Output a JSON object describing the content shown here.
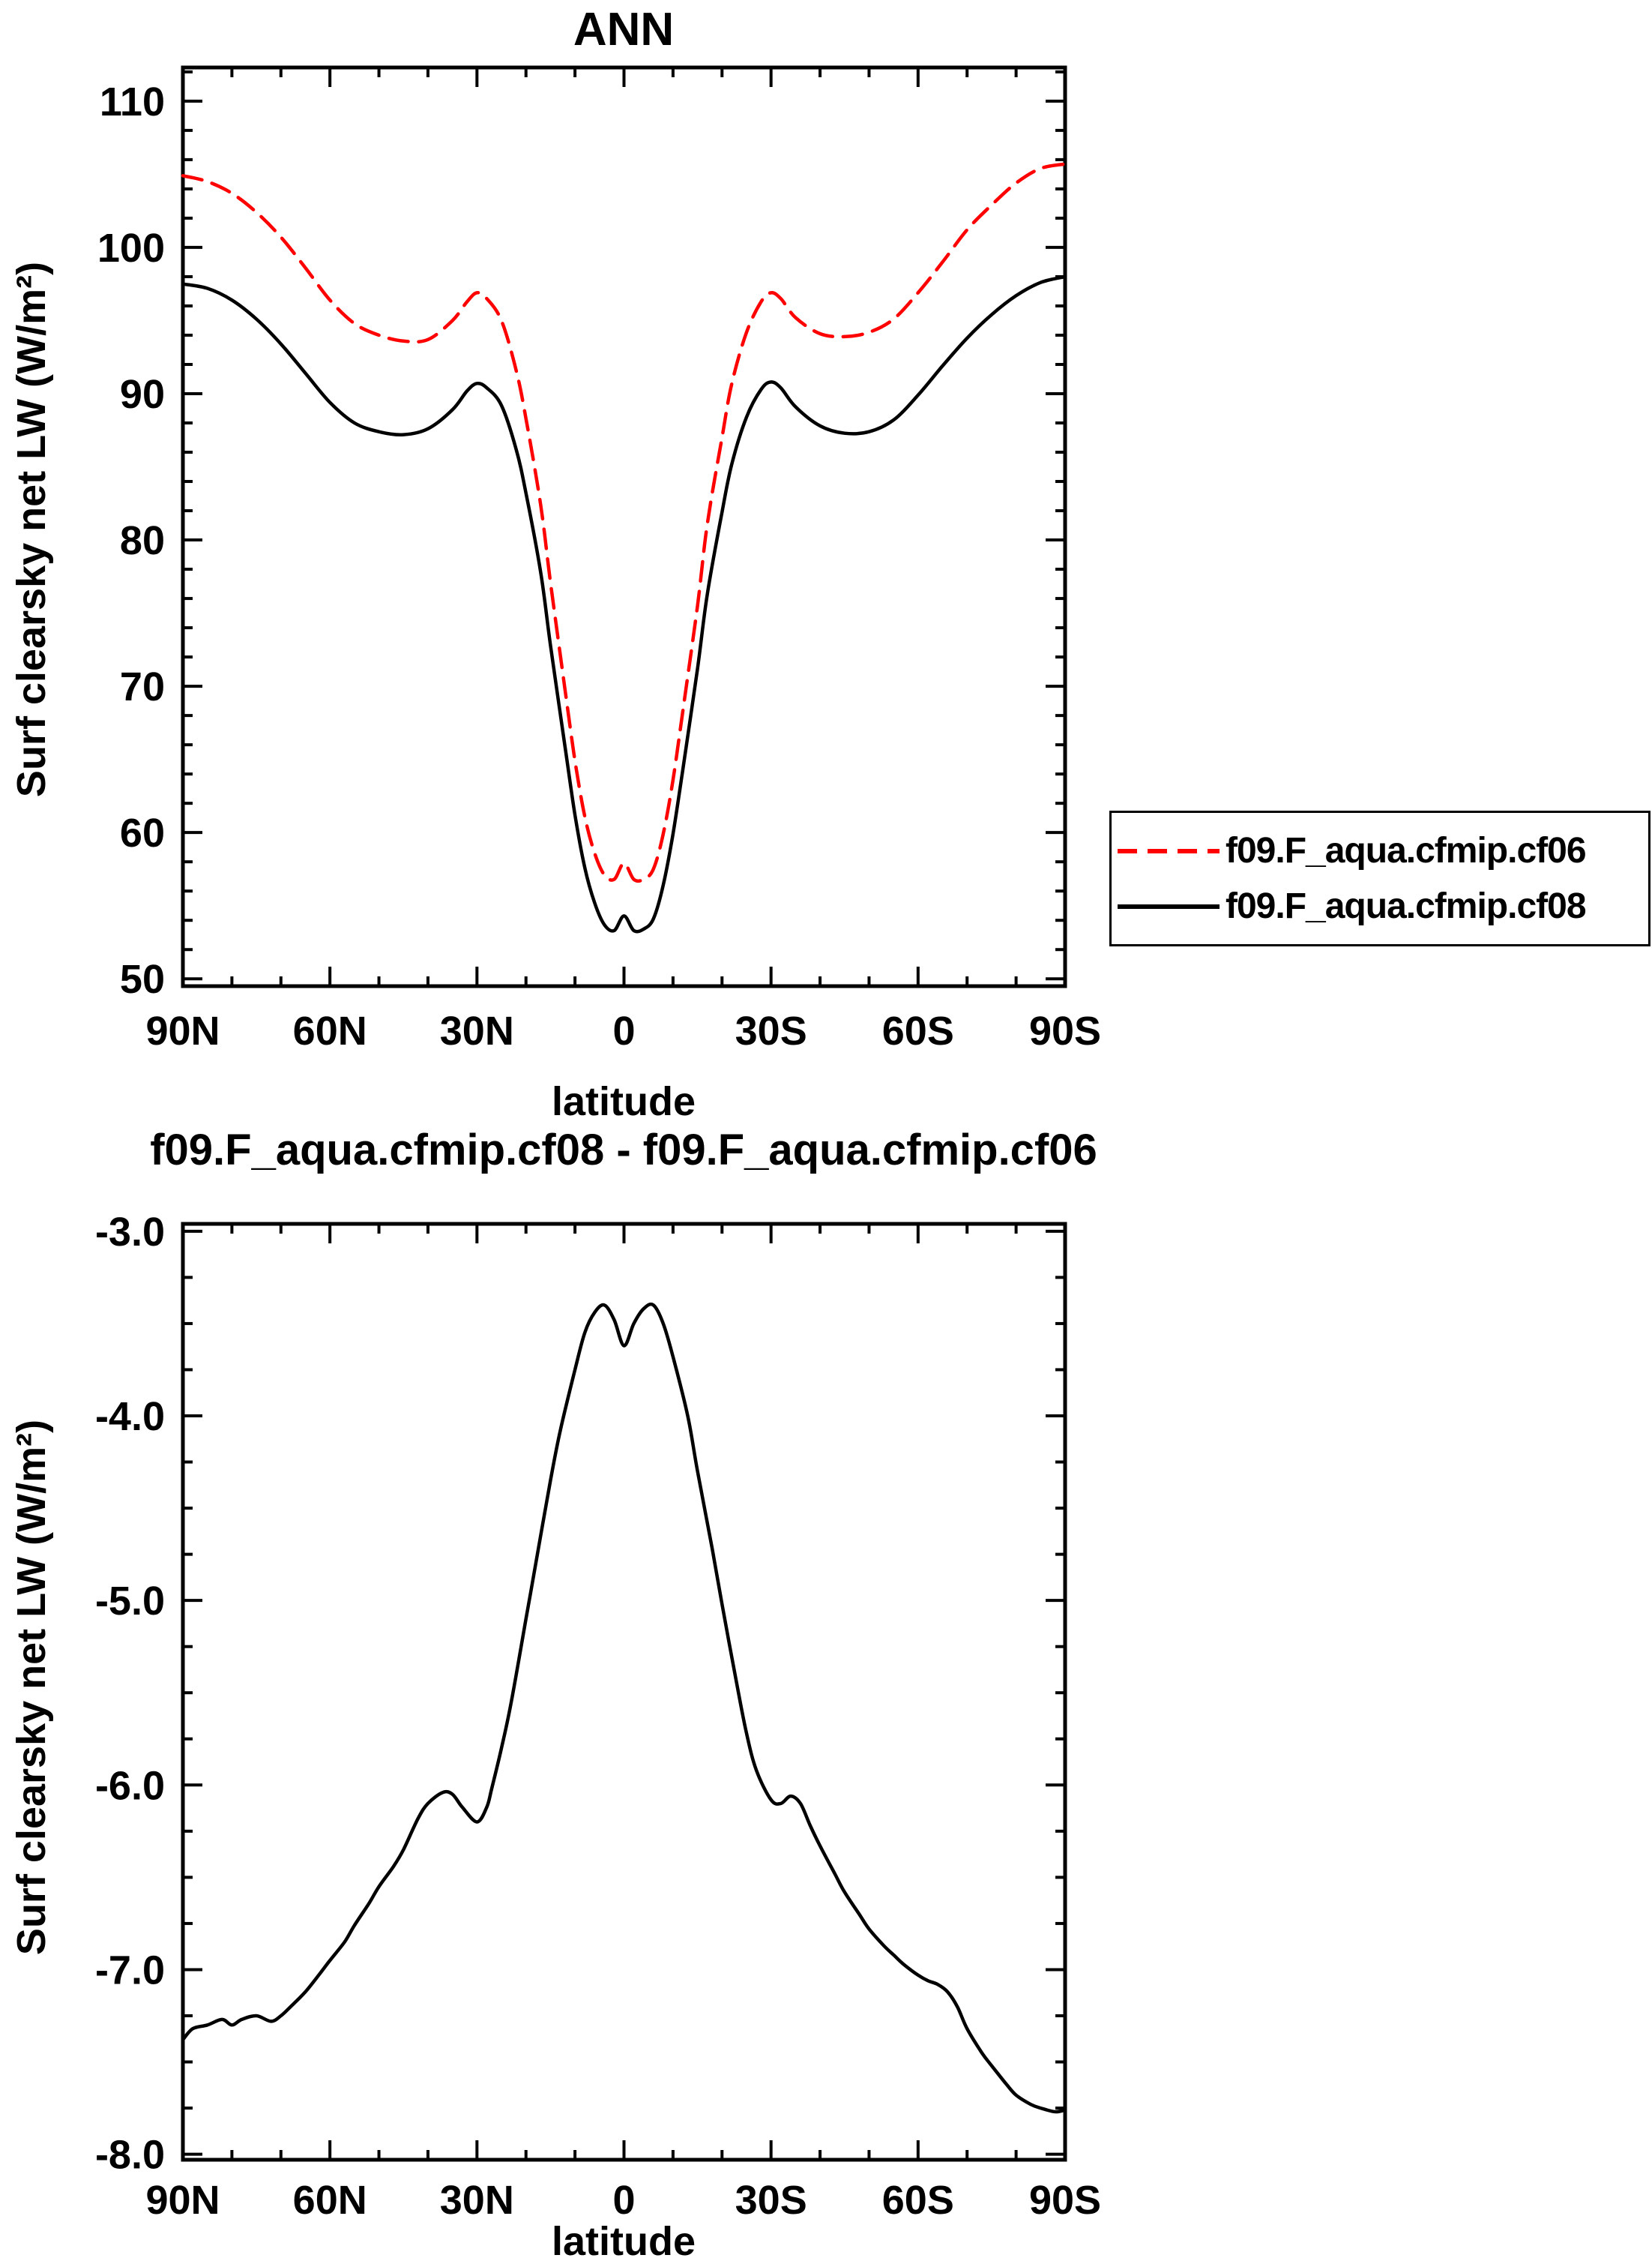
{
  "page": {
    "background": "#ffffff",
    "accent_red": "#ff0000",
    "line_black": "#000000"
  },
  "legend": {
    "position": "outside-right-middle",
    "entries": [
      {
        "label": "f09.F_aqua.cfmip.cf06",
        "color": "#ff0000",
        "style": "dashed"
      },
      {
        "label": "f09.F_aqua.cfmip.cf08",
        "color": "#000000",
        "style": "solid"
      }
    ]
  },
  "chart_data": [
    {
      "type": "line",
      "title": "ANN",
      "x_axis": {
        "label": "latitude",
        "range": [
          90,
          -90
        ],
        "major_ticks": [
          90,
          60,
          30,
          0,
          -30,
          -60,
          -90
        ],
        "major_labels": [
          "90N",
          "60N",
          "30N",
          "0",
          "30S",
          "60S",
          "90S"
        ],
        "minor_step": 10
      },
      "y_axis": {
        "label": "Surf clearsky net LW (W/m²)",
        "range": [
          49.5,
          112.3
        ],
        "major_ticks": [
          50,
          60,
          70,
          80,
          90,
          100,
          110
        ],
        "major_labels": [
          "50",
          "60",
          "70",
          "80",
          "90",
          "100",
          "110"
        ],
        "minor_step": 2
      },
      "grid": false,
      "series": [
        {
          "name": "f09.F_aqua.cfmip.cf06",
          "color": "#ff0000",
          "dash": "dashed",
          "x": [
            90,
            85,
            80,
            75,
            70,
            65,
            60,
            55,
            50,
            45,
            40,
            35,
            32,
            30,
            28,
            25,
            22,
            20,
            17,
            15,
            12,
            10,
            8,
            6,
            4,
            2,
            0,
            -2,
            -4,
            -6,
            -8,
            -10,
            -12,
            -15,
            -17,
            -20,
            -22,
            -25,
            -28,
            -30,
            -32,
            -35,
            -40,
            -45,
            -50,
            -55,
            -60,
            -65,
            -70,
            -75,
            -80,
            -85,
            -90
          ],
          "y": [
            104.9,
            104.5,
            103.7,
            102.4,
            100.7,
            98.6,
            96.4,
            94.8,
            94.0,
            93.6,
            93.7,
            95.0,
            96.3,
            96.9,
            96.5,
            95.0,
            91.6,
            88.3,
            82.4,
            77.1,
            69.7,
            64.9,
            61.1,
            58.6,
            57.1,
            56.8,
            57.9,
            56.8,
            56.8,
            57.5,
            59.9,
            63.6,
            68.3,
            75.5,
            81.1,
            87.0,
            90.7,
            94.2,
            96.3,
            96.9,
            96.5,
            95.2,
            94.1,
            93.9,
            94.2,
            95.1,
            96.9,
            99.0,
            101.2,
            102.9,
            104.4,
            105.4,
            105.7
          ]
        },
        {
          "name": "f09.F_aqua.cfmip.cf08",
          "color": "#000000",
          "dash": "solid",
          "x": [
            90,
            85,
            80,
            75,
            70,
            65,
            60,
            55,
            50,
            45,
            40,
            35,
            32,
            30,
            28,
            25,
            22,
            20,
            17,
            15,
            12,
            10,
            8,
            6,
            4,
            2,
            0,
            -2,
            -4,
            -6,
            -8,
            -10,
            -12,
            -15,
            -17,
            -20,
            -22,
            -25,
            -28,
            -30,
            -32,
            -35,
            -40,
            -45,
            -50,
            -55,
            -60,
            -65,
            -70,
            -75,
            -80,
            -85,
            -90
          ],
          "y": [
            97.5,
            97.2,
            96.4,
            95.1,
            93.4,
            91.4,
            89.4,
            88.0,
            87.4,
            87.2,
            87.6,
            88.9,
            90.2,
            90.7,
            90.4,
            89.2,
            86.2,
            83.2,
            77.8,
            72.8,
            65.8,
            61.2,
            57.6,
            55.2,
            53.7,
            53.3,
            54.3,
            53.3,
            53.4,
            54.1,
            56.4,
            59.9,
            64.3,
            71.2,
            76.3,
            81.9,
            85.2,
            88.4,
            90.3,
            90.8,
            90.4,
            89.1,
            87.8,
            87.3,
            87.4,
            88.2,
            89.9,
            91.9,
            93.8,
            95.4,
            96.7,
            97.6,
            98.0
          ]
        }
      ]
    },
    {
      "type": "line",
      "title": "f09.F_aqua.cfmip.cf08 - f09.F_aqua.cfmip.cf06",
      "x_axis": {
        "label": "latitude",
        "range": [
          90,
          -90
        ],
        "major_ticks": [
          90,
          60,
          30,
          0,
          -30,
          -60,
          -90
        ],
        "major_labels": [
          "90N",
          "60N",
          "30N",
          "0",
          "30S",
          "60S",
          "90S"
        ],
        "minor_step": 10
      },
      "y_axis": {
        "label": "Surf clearsky net LW (W/m²)",
        "range": [
          -8.03,
          -2.96
        ],
        "major_ticks": [
          -8,
          -7,
          -6,
          -5,
          -4,
          -3
        ],
        "major_labels": [
          "-8.0",
          "-7.0",
          "-6.0",
          "-5.0",
          "-4.0",
          "-3.0"
        ],
        "minor_step": 0.25
      },
      "grid": false,
      "series": [
        {
          "name": "f09.F_aqua.cfmip.cf08 - f09.F_aqua.cfmip.cf06",
          "color": "#000000",
          "dash": "solid",
          "x": [
            90,
            88,
            85,
            82,
            80,
            78,
            75,
            72,
            70,
            68,
            65,
            62,
            60,
            57,
            55,
            52,
            50,
            47,
            45,
            42,
            40,
            37,
            35,
            33,
            30,
            28,
            27,
            25,
            23,
            20,
            18,
            15,
            13,
            10,
            8,
            6,
            4,
            2,
            0,
            -2,
            -4,
            -6,
            -8,
            -10,
            -13,
            -15,
            -18,
            -20,
            -23,
            -25,
            -27,
            -30,
            -32,
            -34,
            -36,
            -38,
            -40,
            -43,
            -45,
            -48,
            -50,
            -53,
            -55,
            -57,
            -60,
            -62,
            -64,
            -66,
            -68,
            -70,
            -73,
            -75,
            -78,
            -80,
            -83,
            -85,
            -88,
            -90
          ],
          "y": [
            -7.38,
            -7.32,
            -7.3,
            -7.27,
            -7.3,
            -7.27,
            -7.25,
            -7.28,
            -7.25,
            -7.2,
            -7.12,
            -7.02,
            -6.95,
            -6.85,
            -6.76,
            -6.64,
            -6.55,
            -6.44,
            -6.35,
            -6.18,
            -6.1,
            -6.04,
            -6.05,
            -6.12,
            -6.2,
            -6.12,
            -6.02,
            -5.8,
            -5.55,
            -5.1,
            -4.8,
            -4.35,
            -4.08,
            -3.75,
            -3.55,
            -3.44,
            -3.4,
            -3.48,
            -3.62,
            -3.5,
            -3.42,
            -3.4,
            -3.5,
            -3.68,
            -4.0,
            -4.3,
            -4.72,
            -5.02,
            -5.45,
            -5.72,
            -5.92,
            -6.08,
            -6.1,
            -6.06,
            -6.1,
            -6.22,
            -6.33,
            -6.48,
            -6.58,
            -6.7,
            -6.78,
            -6.87,
            -6.92,
            -6.97,
            -7.03,
            -7.06,
            -7.08,
            -7.12,
            -7.2,
            -7.32,
            -7.45,
            -7.52,
            -7.62,
            -7.68,
            -7.73,
            -7.75,
            -7.77,
            -7.76
          ]
        }
      ]
    }
  ]
}
